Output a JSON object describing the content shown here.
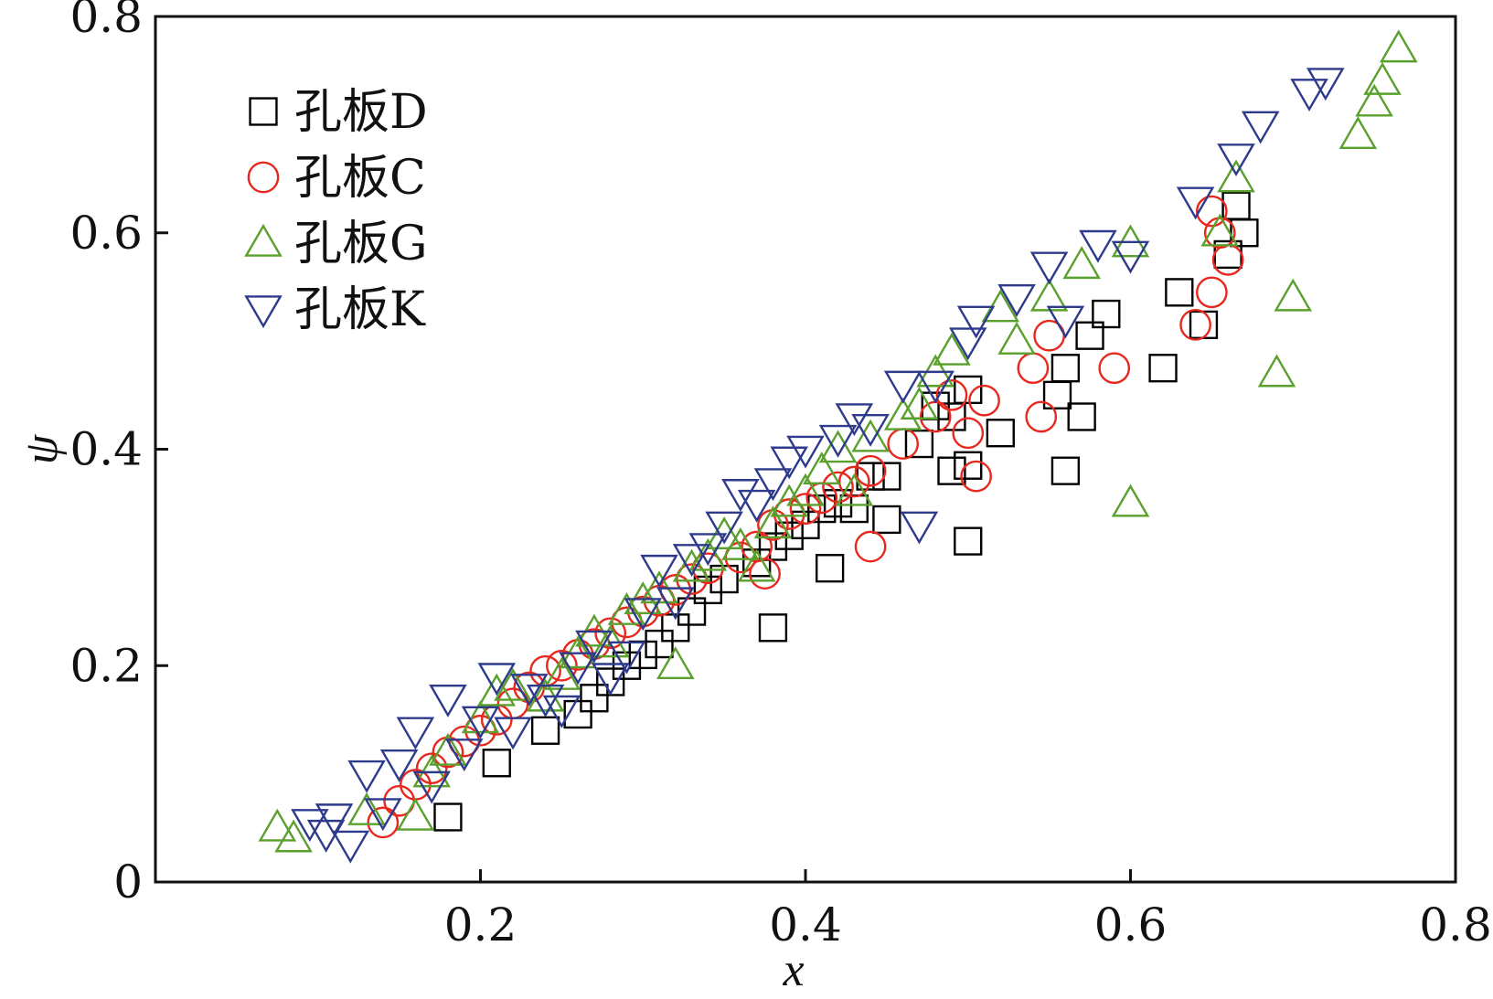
{
  "chart_data": {
    "type": "scatter",
    "title": "",
    "xlabel": "x",
    "ylabel": "ψ",
    "xlim": [
      0,
      0.8
    ],
    "ylim": [
      0,
      0.8
    ],
    "xticks": [
      "0.2",
      "0.4",
      "0.6",
      "0.8"
    ],
    "yticks": [
      "0",
      "0.2",
      "0.4",
      "0.6",
      "0.8"
    ],
    "grid": false,
    "legend_position": "top-left",
    "series": [
      {
        "name": "孔板D",
        "marker": "square",
        "color": "#000000",
        "points": [
          [
            0.18,
            0.06
          ],
          [
            0.21,
            0.11
          ],
          [
            0.24,
            0.14
          ],
          [
            0.26,
            0.155
          ],
          [
            0.27,
            0.17
          ],
          [
            0.28,
            0.185
          ],
          [
            0.29,
            0.2
          ],
          [
            0.3,
            0.21
          ],
          [
            0.31,
            0.22
          ],
          [
            0.32,
            0.235
          ],
          [
            0.33,
            0.25
          ],
          [
            0.34,
            0.27
          ],
          [
            0.35,
            0.28
          ],
          [
            0.37,
            0.295
          ],
          [
            0.38,
            0.31
          ],
          [
            0.39,
            0.32
          ],
          [
            0.4,
            0.33
          ],
          [
            0.41,
            0.345
          ],
          [
            0.42,
            0.35
          ],
          [
            0.43,
            0.345
          ],
          [
            0.44,
            0.375
          ],
          [
            0.45,
            0.375
          ],
          [
            0.47,
            0.405
          ],
          [
            0.48,
            0.44
          ],
          [
            0.49,
            0.43
          ],
          [
            0.5,
            0.455
          ],
          [
            0.52,
            0.415
          ],
          [
            0.49,
            0.38
          ],
          [
            0.5,
            0.385
          ],
          [
            0.5,
            0.315
          ],
          [
            0.45,
            0.335
          ],
          [
            0.415,
            0.29
          ],
          [
            0.38,
            0.235
          ],
          [
            0.555,
            0.45
          ],
          [
            0.56,
            0.475
          ],
          [
            0.57,
            0.43
          ],
          [
            0.575,
            0.505
          ],
          [
            0.585,
            0.525
          ],
          [
            0.56,
            0.38
          ],
          [
            0.62,
            0.475
          ],
          [
            0.63,
            0.545
          ],
          [
            0.645,
            0.515
          ],
          [
            0.66,
            0.58
          ],
          [
            0.665,
            0.625
          ],
          [
            0.67,
            0.6
          ]
        ]
      },
      {
        "name": "孔板C",
        "marker": "circle",
        "color": "#e8281e",
        "points": [
          [
            0.14,
            0.055
          ],
          [
            0.15,
            0.075
          ],
          [
            0.16,
            0.09
          ],
          [
            0.17,
            0.105
          ],
          [
            0.18,
            0.12
          ],
          [
            0.19,
            0.13
          ],
          [
            0.2,
            0.14
          ],
          [
            0.21,
            0.15
          ],
          [
            0.22,
            0.165
          ],
          [
            0.23,
            0.18
          ],
          [
            0.24,
            0.195
          ],
          [
            0.25,
            0.2
          ],
          [
            0.26,
            0.21
          ],
          [
            0.27,
            0.22
          ],
          [
            0.28,
            0.23
          ],
          [
            0.29,
            0.24
          ],
          [
            0.3,
            0.25
          ],
          [
            0.31,
            0.26
          ],
          [
            0.32,
            0.27
          ],
          [
            0.33,
            0.28
          ],
          [
            0.34,
            0.29
          ],
          [
            0.36,
            0.3
          ],
          [
            0.37,
            0.31
          ],
          [
            0.38,
            0.33
          ],
          [
            0.39,
            0.34
          ],
          [
            0.4,
            0.345
          ],
          [
            0.41,
            0.355
          ],
          [
            0.42,
            0.365
          ],
          [
            0.43,
            0.37
          ],
          [
            0.44,
            0.38
          ],
          [
            0.44,
            0.31
          ],
          [
            0.375,
            0.285
          ],
          [
            0.46,
            0.405
          ],
          [
            0.48,
            0.43
          ],
          [
            0.49,
            0.45
          ],
          [
            0.5,
            0.415
          ],
          [
            0.51,
            0.445
          ],
          [
            0.505,
            0.375
          ],
          [
            0.54,
            0.475
          ],
          [
            0.545,
            0.43
          ],
          [
            0.55,
            0.505
          ],
          [
            0.59,
            0.475
          ],
          [
            0.64,
            0.515
          ],
          [
            0.65,
            0.545
          ],
          [
            0.65,
            0.62
          ],
          [
            0.66,
            0.575
          ],
          [
            0.655,
            0.6
          ]
        ]
      },
      {
        "name": "孔板G",
        "marker": "triangle-up",
        "color": "#5aa02c",
        "points": [
          [
            0.075,
            0.05
          ],
          [
            0.085,
            0.04
          ],
          [
            0.13,
            0.065
          ],
          [
            0.16,
            0.06
          ],
          [
            0.17,
            0.1
          ],
          [
            0.18,
            0.12
          ],
          [
            0.2,
            0.15
          ],
          [
            0.21,
            0.175
          ],
          [
            0.22,
            0.18
          ],
          [
            0.24,
            0.17
          ],
          [
            0.25,
            0.19
          ],
          [
            0.26,
            0.21
          ],
          [
            0.27,
            0.23
          ],
          [
            0.28,
            0.22
          ],
          [
            0.29,
            0.25
          ],
          [
            0.3,
            0.26
          ],
          [
            0.31,
            0.27
          ],
          [
            0.32,
            0.2
          ],
          [
            0.33,
            0.29
          ],
          [
            0.34,
            0.3
          ],
          [
            0.35,
            0.32
          ],
          [
            0.36,
            0.31
          ],
          [
            0.37,
            0.29
          ],
          [
            0.38,
            0.33
          ],
          [
            0.39,
            0.35
          ],
          [
            0.4,
            0.36
          ],
          [
            0.41,
            0.38
          ],
          [
            0.42,
            0.4
          ],
          [
            0.43,
            0.36
          ],
          [
            0.44,
            0.41
          ],
          [
            0.46,
            0.43
          ],
          [
            0.47,
            0.44
          ],
          [
            0.48,
            0.47
          ],
          [
            0.49,
            0.49
          ],
          [
            0.52,
            0.53
          ],
          [
            0.53,
            0.5
          ],
          [
            0.55,
            0.54
          ],
          [
            0.57,
            0.57
          ],
          [
            0.6,
            0.59
          ],
          [
            0.6,
            0.35
          ],
          [
            0.655,
            0.6
          ],
          [
            0.665,
            0.65
          ],
          [
            0.69,
            0.47
          ],
          [
            0.7,
            0.54
          ],
          [
            0.74,
            0.69
          ],
          [
            0.75,
            0.72
          ],
          [
            0.755,
            0.74
          ],
          [
            0.765,
            0.77
          ]
        ]
      },
      {
        "name": "孔板K",
        "marker": "triangle-down",
        "color": "#2e3b8c",
        "points": [
          [
            0.095,
            0.055
          ],
          [
            0.105,
            0.045
          ],
          [
            0.11,
            0.06
          ],
          [
            0.12,
            0.035
          ],
          [
            0.13,
            0.1
          ],
          [
            0.14,
            0.065
          ],
          [
            0.15,
            0.11
          ],
          [
            0.16,
            0.14
          ],
          [
            0.17,
            0.09
          ],
          [
            0.18,
            0.17
          ],
          [
            0.19,
            0.12
          ],
          [
            0.2,
            0.15
          ],
          [
            0.21,
            0.19
          ],
          [
            0.22,
            0.14
          ],
          [
            0.23,
            0.18
          ],
          [
            0.24,
            0.17
          ],
          [
            0.25,
            0.16
          ],
          [
            0.26,
            0.2
          ],
          [
            0.27,
            0.22
          ],
          [
            0.28,
            0.19
          ],
          [
            0.29,
            0.21
          ],
          [
            0.3,
            0.25
          ],
          [
            0.31,
            0.29
          ],
          [
            0.32,
            0.26
          ],
          [
            0.33,
            0.3
          ],
          [
            0.34,
            0.31
          ],
          [
            0.35,
            0.33
          ],
          [
            0.36,
            0.36
          ],
          [
            0.37,
            0.35
          ],
          [
            0.38,
            0.37
          ],
          [
            0.39,
            0.39
          ],
          [
            0.4,
            0.4
          ],
          [
            0.42,
            0.41
          ],
          [
            0.43,
            0.43
          ],
          [
            0.44,
            0.42
          ],
          [
            0.46,
            0.46
          ],
          [
            0.47,
            0.33
          ],
          [
            0.48,
            0.46
          ],
          [
            0.5,
            0.5
          ],
          [
            0.505,
            0.52
          ],
          [
            0.53,
            0.54
          ],
          [
            0.55,
            0.57
          ],
          [
            0.56,
            0.52
          ],
          [
            0.58,
            0.59
          ],
          [
            0.6,
            0.58
          ],
          [
            0.64,
            0.63
          ],
          [
            0.665,
            0.67
          ],
          [
            0.68,
            0.7
          ],
          [
            0.71,
            0.73
          ],
          [
            0.72,
            0.74
          ]
        ]
      }
    ]
  }
}
